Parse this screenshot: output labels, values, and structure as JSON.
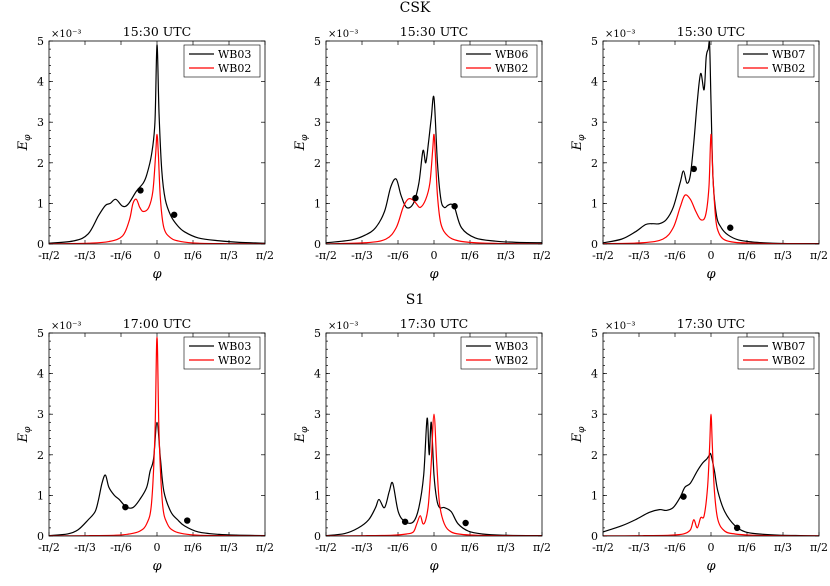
{
  "groups": [
    {
      "name": "CSK"
    },
    {
      "name": "S1"
    }
  ],
  "chart_data": [
    {
      "type": "line",
      "group": "CSK",
      "title": "15:30 UTC",
      "xlabel": "φ",
      "ylabel": "E_φ",
      "y_exponent": "×10⁻³",
      "xlim": [
        -1.5708,
        1.5708
      ],
      "ylim": [
        0,
        0.005
      ],
      "xticks": [
        "-π/2",
        "-π/3",
        "-π/6",
        "0",
        "π/6",
        "π/3",
        "π/2"
      ],
      "yticks": [
        "0",
        "1",
        "2",
        "3",
        "4",
        "5"
      ],
      "legend": "top-right",
      "series": [
        {
          "name": "WB03",
          "color": "#000000",
          "x": [
            -1.5708,
            -1.2,
            -1.0,
            -0.85,
            -0.75,
            -0.68,
            -0.6,
            -0.5,
            -0.42,
            -0.3,
            -0.2,
            -0.15,
            -0.08,
            -0.03,
            0,
            0.03,
            0.07,
            0.12,
            0.2,
            0.3,
            0.4,
            0.6,
            0.9,
            1.2,
            1.5708
          ],
          "y": [
            2e-05,
            8e-05,
            0.00025,
            0.0007,
            0.00095,
            0.001,
            0.0011,
            0.00093,
            0.00098,
            0.0013,
            0.0015,
            0.0017,
            0.0022,
            0.003,
            0.0049,
            0.0032,
            0.0018,
            0.0011,
            0.0007,
            0.00045,
            0.0003,
            0.00015,
            8e-05,
            4e-05,
            2e-05
          ],
          "markers": [
            {
              "x": -0.24,
              "y": 0.00132
            },
            {
              "x": 0.25,
              "y": 0.00072
            }
          ]
        },
        {
          "name": "WB02",
          "color": "#ff0000",
          "x": [
            -1.5708,
            -1.0,
            -0.7,
            -0.5,
            -0.4,
            -0.35,
            -0.3,
            -0.25,
            -0.2,
            -0.12,
            -0.06,
            -0.02,
            0,
            0.02,
            0.05,
            0.1,
            0.2,
            0.35,
            0.6,
            1.0,
            1.5708
          ],
          "y": [
            5e-06,
            2e-05,
            6e-05,
            0.0002,
            0.0006,
            0.001,
            0.0011,
            0.0009,
            0.0008,
            0.0009,
            0.0013,
            0.0022,
            0.0027,
            0.0022,
            0.0011,
            0.0004,
            0.00015,
            6e-05,
            2e-05,
            8e-06,
            4e-06
          ]
        }
      ]
    },
    {
      "type": "line",
      "group": "CSK",
      "title": "15:30 UTC",
      "xlabel": "φ",
      "ylabel": "E_φ",
      "y_exponent": "×10⁻³",
      "xlim": [
        -1.5708,
        1.5708
      ],
      "ylim": [
        0,
        0.005
      ],
      "xticks": [
        "-π/2",
        "-π/3",
        "-π/6",
        "0",
        "π/6",
        "π/3",
        "π/2"
      ],
      "yticks": [
        "0",
        "1",
        "2",
        "3",
        "4",
        "5"
      ],
      "legend": "top-right",
      "series": [
        {
          "name": "WB06",
          "color": "#000000",
          "x": [
            -1.5708,
            -1.2,
            -1.0,
            -0.85,
            -0.72,
            -0.63,
            -0.55,
            -0.48,
            -0.4,
            -0.3,
            -0.22,
            -0.16,
            -0.12,
            -0.08,
            -0.04,
            0,
            0.05,
            0.1,
            0.15,
            0.2,
            0.25,
            0.3,
            0.4,
            0.6,
            0.9,
            1.2,
            1.5708
          ],
          "y": [
            3e-05,
            0.0001,
            0.00022,
            0.0004,
            0.0008,
            0.0014,
            0.0016,
            0.0012,
            0.0009,
            0.001,
            0.0015,
            0.0023,
            0.002,
            0.0025,
            0.0031,
            0.0036,
            0.002,
            0.0011,
            0.0009,
            0.00095,
            0.00098,
            0.0009,
            0.0004,
            0.00015,
            7e-05,
            4e-05,
            3e-05
          ],
          "markers": [
            {
              "x": -0.27,
              "y": 0.00113
            },
            {
              "x": 0.3,
              "y": 0.00093
            }
          ]
        },
        {
          "name": "WB02",
          "color": "#ff0000",
          "x": [
            -1.5708,
            -1.0,
            -0.7,
            -0.55,
            -0.45,
            -0.38,
            -0.32,
            -0.26,
            -0.2,
            -0.12,
            -0.06,
            -0.02,
            0,
            0.02,
            0.05,
            0.1,
            0.2,
            0.35,
            0.6,
            1.0,
            1.5708
          ],
          "y": [
            5e-06,
            3e-05,
            0.00012,
            0.0004,
            0.0009,
            0.0011,
            0.0011,
            0.001,
            0.0009,
            0.0011,
            0.0015,
            0.0023,
            0.0027,
            0.0022,
            0.0012,
            0.0005,
            0.0002,
            8e-05,
            3e-05,
            1e-05,
            5e-06
          ]
        }
      ]
    },
    {
      "type": "line",
      "group": "CSK",
      "title": "15:30 UTC",
      "xlabel": "φ",
      "ylabel": "E_φ",
      "y_exponent": "×10⁻³",
      "xlim": [
        -1.5708,
        1.5708
      ],
      "ylim": [
        0,
        0.005
      ],
      "xticks": [
        "-π/2",
        "-π/3",
        "-π/6",
        "0",
        "π/6",
        "π/3",
        "π/2"
      ],
      "yticks": [
        "0",
        "1",
        "2",
        "3",
        "4",
        "5"
      ],
      "legend": "top-right",
      "series": [
        {
          "name": "WB07",
          "color": "#000000",
          "x": [
            -1.5708,
            -1.3,
            -1.1,
            -0.95,
            -0.85,
            -0.75,
            -0.65,
            -0.55,
            -0.45,
            -0.4,
            -0.35,
            -0.3,
            -0.25,
            -0.2,
            -0.15,
            -0.1,
            -0.07,
            -0.04,
            -0.02,
            0,
            0.03,
            0.08,
            0.15,
            0.25,
            0.4,
            0.6,
            0.9,
            1.2,
            1.5708
          ],
          "y": [
            3e-05,
            0.00012,
            0.0003,
            0.00048,
            0.0005,
            0.0005,
            0.0006,
            0.0009,
            0.0015,
            0.0018,
            0.0015,
            0.0017,
            0.0025,
            0.0035,
            0.0042,
            0.0038,
            0.0046,
            0.0048,
            0.0049,
            0.0035,
            0.0016,
            0.0007,
            0.0004,
            0.00022,
            0.0001,
            5e-05,
            2e-05,
            1e-05,
            1e-05
          ],
          "markers": [
            {
              "x": -0.25,
              "y": 0.00185
            },
            {
              "x": 0.28,
              "y": 0.0004
            }
          ]
        },
        {
          "name": "WB02",
          "color": "#ff0000",
          "x": [
            -1.5708,
            -1.0,
            -0.7,
            -0.55,
            -0.45,
            -0.38,
            -0.3,
            -0.22,
            -0.15,
            -0.08,
            -0.03,
            0,
            0.03,
            0.07,
            0.12,
            0.2,
            0.35,
            0.6,
            1.0,
            1.5708
          ],
          "y": [
            8e-06,
            3e-05,
            0.00012,
            0.0004,
            0.0009,
            0.0012,
            0.0011,
            0.0008,
            0.0006,
            0.0007,
            0.0014,
            0.0027,
            0.0016,
            0.0006,
            0.00025,
            0.0001,
            4e-05,
            2e-05,
            8e-06,
            4e-06
          ]
        }
      ]
    },
    {
      "type": "line",
      "group": "S1",
      "title": "17:00 UTC",
      "xlabel": "φ",
      "ylabel": "E_φ",
      "y_exponent": "×10⁻³",
      "xlim": [
        -1.5708,
        1.5708
      ],
      "ylim": [
        0,
        0.005
      ],
      "xticks": [
        "-π/2",
        "-π/3",
        "-π/6",
        "0",
        "π/6",
        "π/3",
        "π/2"
      ],
      "yticks": [
        "0",
        "1",
        "2",
        "3",
        "4",
        "5"
      ],
      "legend": "top-right",
      "series": [
        {
          "name": "WB03",
          "color": "#000000",
          "x": [
            -1.5708,
            -1.3,
            -1.15,
            -1.0,
            -0.9,
            -0.85,
            -0.8,
            -0.75,
            -0.7,
            -0.62,
            -0.55,
            -0.45,
            -0.35,
            -0.25,
            -0.15,
            -0.1,
            -0.05,
            0,
            0.05,
            0.1,
            0.2,
            0.3,
            0.4,
            0.6,
            0.9,
            1.2,
            1.5708
          ],
          "y": [
            1e-05,
            5e-05,
            0.00015,
            0.0004,
            0.0006,
            0.0009,
            0.0013,
            0.0015,
            0.0012,
            0.001,
            0.0009,
            0.00072,
            0.0007,
            0.0009,
            0.0012,
            0.0016,
            0.0019,
            0.0028,
            0.0019,
            0.0011,
            0.0006,
            0.0004,
            0.00025,
            0.0001,
            4e-05,
            2e-05,
            1e-05
          ],
          "markers": [
            {
              "x": -0.46,
              "y": 0.00071
            },
            {
              "x": 0.44,
              "y": 0.00038
            }
          ]
        },
        {
          "name": "WB02",
          "color": "#ff0000",
          "x": [
            -1.5708,
            -1.0,
            -0.6,
            -0.4,
            -0.25,
            -0.15,
            -0.08,
            -0.03,
            0,
            0.03,
            0.08,
            0.15,
            0.25,
            0.4,
            0.6,
            1.0,
            1.5708
          ],
          "y": [
            3e-06,
            8e-06,
            2e-05,
            5e-05,
            0.00012,
            0.0003,
            0.0008,
            0.0025,
            0.0049,
            0.0025,
            0.0008,
            0.0003,
            0.00012,
            5e-05,
            2e-05,
            8e-06,
            3e-06
          ]
        }
      ]
    },
    {
      "type": "line",
      "group": "S1",
      "title": "17:30 UTC",
      "xlabel": "φ",
      "ylabel": "E_φ",
      "y_exponent": "×10⁻³",
      "xlim": [
        -1.5708,
        1.5708
      ],
      "ylim": [
        0,
        0.005
      ],
      "xticks": [
        "-π/2",
        "-π/3",
        "-π/6",
        "0",
        "π/6",
        "π/3",
        "π/2"
      ],
      "yticks": [
        "0",
        "1",
        "2",
        "3",
        "4",
        "5"
      ],
      "legend": "top-right",
      "series": [
        {
          "name": "WB03",
          "color": "#000000",
          "x": [
            -1.5708,
            -1.3,
            -1.1,
            -0.95,
            -0.85,
            -0.8,
            -0.72,
            -0.65,
            -0.6,
            -0.52,
            -0.42,
            -0.3,
            -0.22,
            -0.15,
            -0.1,
            -0.07,
            -0.04,
            0,
            0.04,
            0.08,
            0.15,
            0.25,
            0.35,
            0.5,
            0.7,
            1.0,
            1.5708
          ],
          "y": [
            1e-05,
            6e-05,
            0.0002,
            0.0004,
            0.0007,
            0.0009,
            0.0007,
            0.0011,
            0.0013,
            0.0006,
            0.00035,
            0.00035,
            0.0007,
            0.0015,
            0.0029,
            0.002,
            0.0028,
            0.0015,
            0.0009,
            0.0007,
            0.0007,
            0.0006,
            0.0003,
            0.00012,
            5e-05,
            2e-05,
            1e-05
          ],
          "markers": [
            {
              "x": -0.42,
              "y": 0.00035
            },
            {
              "x": 0.46,
              "y": 0.00032
            }
          ]
        },
        {
          "name": "WB02",
          "color": "#ff0000",
          "x": [
            -1.5708,
            -1.0,
            -0.6,
            -0.4,
            -0.3,
            -0.25,
            -0.2,
            -0.16,
            -0.12,
            -0.08,
            -0.04,
            0,
            0.04,
            0.08,
            0.15,
            0.25,
            0.4,
            0.6,
            1.0,
            1.5708
          ],
          "y": [
            3e-06,
            8e-06,
            2e-05,
            5e-05,
            0.0001,
            0.0003,
            0.0005,
            0.0003,
            0.0004,
            0.0008,
            0.0018,
            0.003,
            0.0018,
            0.0008,
            0.0003,
            0.0001,
            4e-05,
            2e-05,
            8e-06,
            3e-06
          ]
        }
      ]
    },
    {
      "type": "line",
      "group": "S1",
      "title": "17:30 UTC",
      "xlabel": "φ",
      "ylabel": "E_φ",
      "y_exponent": "×10⁻³",
      "xlim": [
        -1.5708,
        1.5708
      ],
      "ylim": [
        0,
        0.005
      ],
      "xticks": [
        "-π/2",
        "-π/3",
        "-π/6",
        "0",
        "π/6",
        "π/3",
        "π/2"
      ],
      "yticks": [
        "0",
        "1",
        "2",
        "3",
        "4",
        "5"
      ],
      "legend": "top-right",
      "series": [
        {
          "name": "WB07",
          "color": "#000000",
          "x": [
            -1.5708,
            -1.3,
            -1.1,
            -0.9,
            -0.75,
            -0.65,
            -0.55,
            -0.45,
            -0.38,
            -0.3,
            -0.2,
            -0.12,
            -0.06,
            -0.02,
            0,
            0.05,
            0.1,
            0.2,
            0.35,
            0.5,
            0.7,
            1.0,
            1.3,
            1.5708
          ],
          "y": [
            0.0001,
            0.00025,
            0.0004,
            0.00058,
            0.00065,
            0.00063,
            0.0007,
            0.00095,
            0.0012,
            0.0013,
            0.0016,
            0.0018,
            0.0019,
            0.002,
            0.002,
            0.0016,
            0.0011,
            0.0006,
            0.00025,
            0.0001,
            5e-05,
            2e-05,
            1e-05,
            5e-06
          ],
          "markers": [
            {
              "x": -0.4,
              "y": 0.00097
            },
            {
              "x": 0.38,
              "y": 0.0002
            }
          ]
        },
        {
          "name": "WB02",
          "color": "#ff0000",
          "x": [
            -1.5708,
            -1.0,
            -0.6,
            -0.4,
            -0.3,
            -0.25,
            -0.2,
            -0.15,
            -0.1,
            -0.05,
            -0.02,
            0,
            0.02,
            0.05,
            0.1,
            0.2,
            0.35,
            0.6,
            1.0,
            1.5708
          ],
          "y": [
            3e-06,
            8e-06,
            2e-05,
            5e-05,
            0.00015,
            0.0004,
            0.0002,
            0.00045,
            0.0005,
            0.0012,
            0.0022,
            0.003,
            0.0022,
            0.0011,
            0.0004,
            0.00012,
            5e-05,
            2e-05,
            8e-06,
            3e-06
          ]
        }
      ]
    }
  ]
}
